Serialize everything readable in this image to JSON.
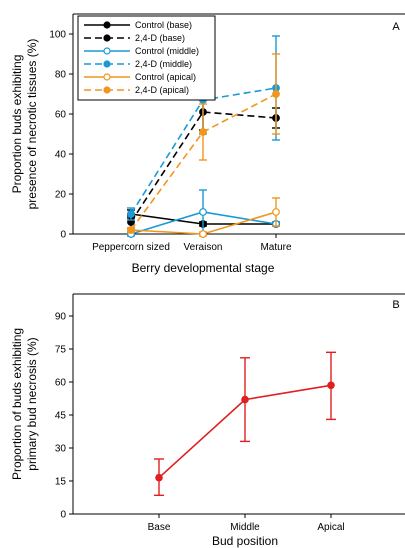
{
  "chart_data": [
    {
      "type": "line",
      "panel_label": "A",
      "xlabel": "Berry developmental stage",
      "ylabel": "Proportion buds exhibiting presence of necrotic tissues (%)",
      "ylabel_lines": [
        "Proportion buds exhibiting",
        "presence of necrotic tissues (%)"
      ],
      "categories": [
        "Peppercorn sized",
        "Veraison",
        "Mature"
      ],
      "ylim": [
        0,
        110
      ],
      "yticks": [
        "0",
        "20",
        "40",
        "60",
        "80",
        "100"
      ],
      "legend_position": "top-left",
      "series": [
        {
          "name": "Control (base)",
          "color": "#000000",
          "dash": "solid",
          "values": [
            10,
            5,
            5
          ],
          "err": [
            2,
            1,
            1
          ]
        },
        {
          "name": "2,4-D (base)",
          "color": "#000000",
          "dash": "dashed",
          "values": [
            6,
            61,
            58
          ],
          "err": [
            3,
            9,
            5
          ]
        },
        {
          "name": "Control (middle)",
          "color": "#1a9ad6",
          "dash": "solid",
          "values": [
            0,
            11,
            5
          ],
          "err": [
            1,
            11,
            1
          ]
        },
        {
          "name": "2,4-D (middle)",
          "color": "#1a9ad6",
          "dash": "dashed",
          "values": [
            10,
            67,
            73
          ],
          "err": [
            3,
            17,
            26
          ]
        },
        {
          "name": "Control (apical)",
          "color": "#f0961e",
          "dash": "solid",
          "values": [
            2,
            0,
            11
          ],
          "err": [
            1,
            1,
            7
          ]
        },
        {
          "name": "2,4-D (apical)",
          "color": "#f0961e",
          "dash": "dashed",
          "values": [
            2,
            51,
            70
          ],
          "err": [
            1,
            14,
            20
          ]
        }
      ]
    },
    {
      "type": "line",
      "panel_label": "B",
      "xlabel": "Bud position",
      "ylabel": "Proportion of buds exhibiting primary bud necrosis (%)",
      "ylabel_lines": [
        "Proportion of buds exhibiting",
        "primary bud necrosis (%)"
      ],
      "categories": [
        "Base",
        "Middle",
        "Apical"
      ],
      "ylim": [
        0,
        100
      ],
      "yticks": [
        "0",
        "15",
        "30",
        "45",
        "60",
        "75",
        "90"
      ],
      "series": [
        {
          "color": "#e02020",
          "values": [
            16.5,
            52,
            58.5
          ],
          "err_low": [
            8,
            19,
            15.5
          ],
          "err_high": [
            8.5,
            19,
            15
          ]
        }
      ]
    }
  ]
}
